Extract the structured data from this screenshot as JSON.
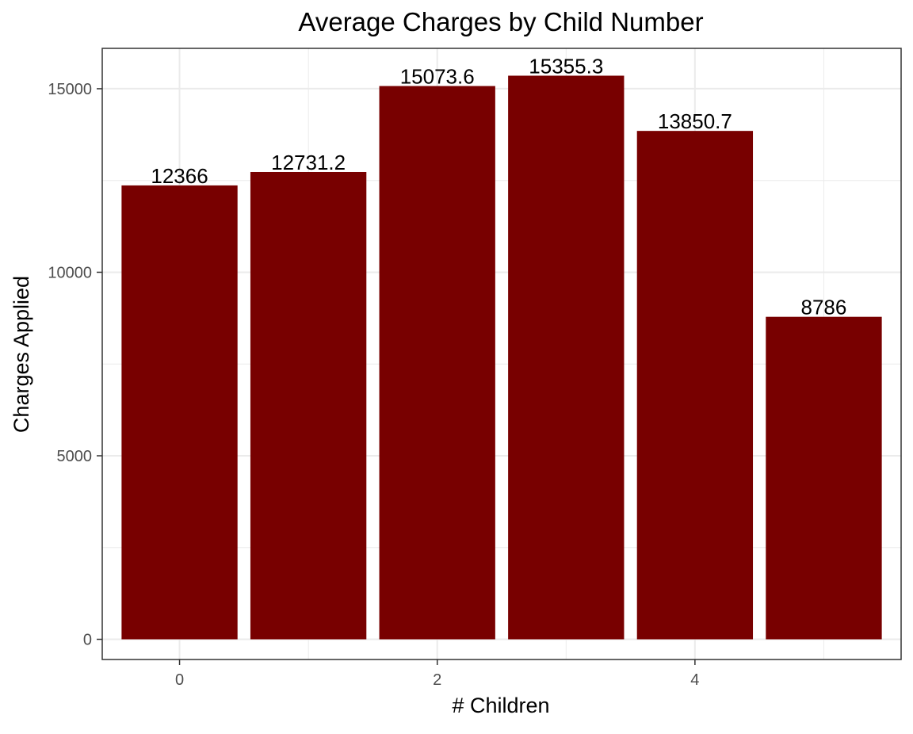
{
  "chart_data": {
    "type": "bar",
    "title": "Average Charges by Child Number",
    "xlabel": "# Children",
    "ylabel": "Charges Applied",
    "categories": [
      0,
      1,
      2,
      3,
      4,
      5
    ],
    "values": [
      12366,
      12731.2,
      15073.6,
      15355.3,
      13850.7,
      8786
    ],
    "data_labels": [
      "12366",
      "12731.2",
      "15073.6",
      "15355.3",
      "13850.7",
      "8786"
    ],
    "xlim": [
      -0.6,
      5.6
    ],
    "ylim": [
      -550,
      16100
    ],
    "x_ticks": [
      0,
      2,
      4
    ],
    "x_tick_labels": [
      "0",
      "2",
      "4"
    ],
    "x_minor_ticks": [
      1,
      3,
      5
    ],
    "y_ticks": [
      0,
      5000,
      10000,
      15000
    ],
    "y_tick_labels": [
      "0",
      "5000",
      "10000",
      "15000"
    ],
    "y_minor_ticks": [
      2500,
      7500,
      12500
    ],
    "bar_color": "#780000",
    "grid": true,
    "legend": "none"
  }
}
